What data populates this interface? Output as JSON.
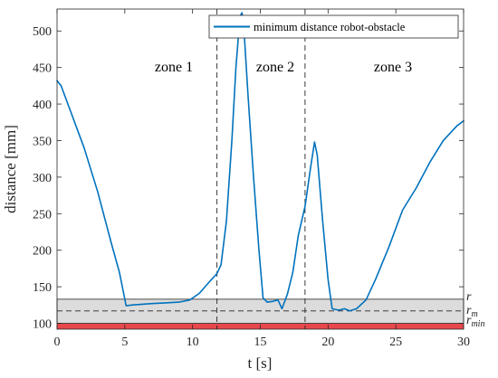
{
  "chart_data": {
    "type": "line",
    "title": "",
    "xlabel": "t [s]",
    "ylabel": "distance [mm]",
    "xlim": [
      0,
      30
    ],
    "ylim": [
      92,
      530
    ],
    "x_ticks": [
      0,
      5,
      10,
      15,
      20,
      25,
      30
    ],
    "y_ticks": [
      100,
      150,
      200,
      250,
      300,
      350,
      400,
      450,
      500
    ],
    "grid": false,
    "legend_position": "top-right",
    "series": [
      {
        "name": "minimum distance robot-obstacle",
        "color": "#0072BD",
        "points": [
          [
            0,
            432
          ],
          [
            0.3,
            425
          ],
          [
            1,
            390
          ],
          [
            2,
            340
          ],
          [
            3,
            280
          ],
          [
            4,
            210
          ],
          [
            4.6,
            170
          ],
          [
            5.1,
            124
          ],
          [
            5.5,
            125
          ],
          [
            7,
            127
          ],
          [
            8,
            128
          ],
          [
            9,
            129
          ],
          [
            9.8,
            132
          ],
          [
            10.5,
            141
          ],
          [
            11.3,
            158
          ],
          [
            11.8,
            168
          ],
          [
            12.1,
            180
          ],
          [
            12.5,
            240
          ],
          [
            12.9,
            350
          ],
          [
            13.2,
            450
          ],
          [
            13.5,
            520
          ],
          [
            13.65,
            525
          ],
          [
            13.8,
            500
          ],
          [
            14.1,
            410
          ],
          [
            14.5,
            300
          ],
          [
            14.9,
            200
          ],
          [
            15.2,
            135
          ],
          [
            15.5,
            129
          ],
          [
            15.9,
            130
          ],
          [
            16.3,
            132
          ],
          [
            16.6,
            120
          ],
          [
            17,
            140
          ],
          [
            17.4,
            170
          ],
          [
            17.8,
            220
          ],
          [
            18.3,
            260
          ],
          [
            18.7,
            312
          ],
          [
            19,
            348
          ],
          [
            19.2,
            330
          ],
          [
            19.6,
            240
          ],
          [
            20,
            160
          ],
          [
            20.3,
            120
          ],
          [
            20.8,
            118
          ],
          [
            21.2,
            120
          ],
          [
            21.6,
            117
          ],
          [
            22.1,
            120
          ],
          [
            22.8,
            132
          ],
          [
            23.5,
            160
          ],
          [
            24.5,
            205
          ],
          [
            25.5,
            255
          ],
          [
            26.5,
            285
          ],
          [
            27.5,
            320
          ],
          [
            28.5,
            350
          ],
          [
            29.5,
            370
          ],
          [
            30,
            377
          ]
        ]
      }
    ],
    "vertical_lines": [
      11.8,
      18.3
    ],
    "zone_labels": [
      "zone 1",
      "zone 2",
      "zone 3"
    ],
    "bands": {
      "r": 133,
      "r_m": 117,
      "r_min": 100,
      "safety_band_color": "#dcdcdc",
      "collision_band_color": "#e8474c"
    },
    "band_labels": {
      "r": "r",
      "r_m_main": "r",
      "r_m_sub": "m",
      "r_min_main": "r",
      "r_min_sub": "min"
    }
  }
}
